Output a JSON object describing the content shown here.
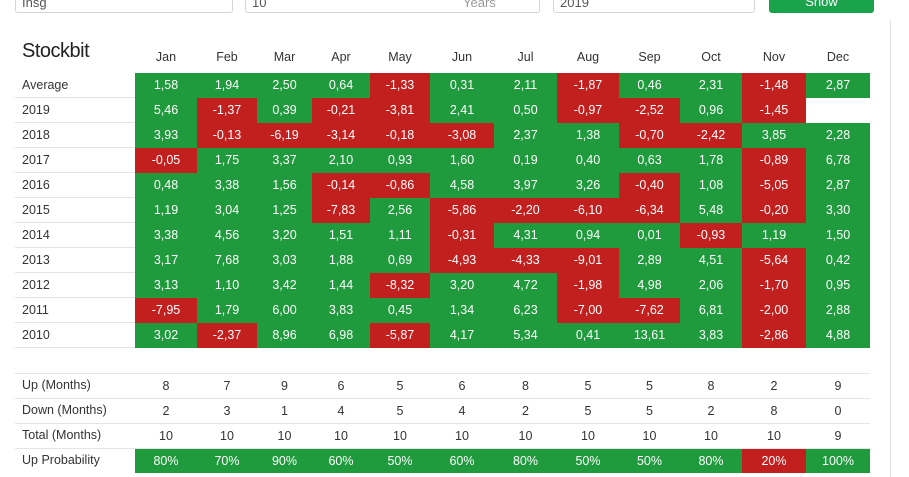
{
  "toolbar": {
    "stock": "Insg",
    "years": "10",
    "years_unit": "Years",
    "year": "2019",
    "button": "Show"
  },
  "logo": "Stockbit",
  "table": {
    "months": [
      "Jan",
      "Feb",
      "Mar",
      "Apr",
      "May",
      "Jun",
      "Jul",
      "Aug",
      "Sep",
      "Oct",
      "Nov",
      "Dec"
    ],
    "positive_color": "#1f9a3c",
    "negative_color": "#c2201e",
    "rows": [
      {
        "label": "Average",
        "cells": [
          "1,58",
          "1,94",
          "2,50",
          "0,64",
          "-1,33",
          "0,31",
          "2,11",
          "-1,87",
          "0,46",
          "2,31",
          "-1,48",
          "2,87"
        ]
      },
      {
        "label": "2019",
        "cells": [
          "5,46",
          "-1,37",
          "0,39",
          "-0,21",
          "-3,81",
          "2,41",
          "0,50",
          "-0,97",
          "-2,52",
          "0,96",
          "-1,45"
        ]
      },
      {
        "label": "2018",
        "cells": [
          "3,93",
          "-0,13",
          "-6,19",
          "-3,14",
          "-0,18",
          "-3,08",
          "2,37",
          "1,38",
          "-0,70",
          "-2,42",
          "3,85",
          "2,28"
        ]
      },
      {
        "label": "2017",
        "cells": [
          "-0,05",
          "1,75",
          "3,37",
          "2,10",
          "0,93",
          "1,60",
          "0,19",
          "0,40",
          "0,63",
          "1,78",
          "-0,89",
          "6,78"
        ]
      },
      {
        "label": "2016",
        "cells": [
          "0,48",
          "3,38",
          "1,56",
          "-0,14",
          "-0,86",
          "4,58",
          "3,97",
          "3,26",
          "-0,40",
          "1,08",
          "-5,05",
          "2,87"
        ]
      },
      {
        "label": "2015",
        "cells": [
          "1,19",
          "3,04",
          "1,25",
          "-7,83",
          "2,56",
          "-5,86",
          "-2,20",
          "-6,10",
          "-6,34",
          "5,48",
          "-0,20",
          "3,30"
        ]
      },
      {
        "label": "2014",
        "cells": [
          "3,38",
          "4,56",
          "3,20",
          "1,51",
          "1,11",
          "-0,31",
          "4,31",
          "0,94",
          "0,01",
          "-0,93",
          "1,19",
          "1,50"
        ]
      },
      {
        "label": "2013",
        "cells": [
          "3,17",
          "7,68",
          "3,03",
          "1,88",
          "0,69",
          "-4,93",
          "-4,33",
          "-9,01",
          "2,89",
          "4,51",
          "-5,64",
          "0,42"
        ]
      },
      {
        "label": "2012",
        "cells": [
          "3,13",
          "1,10",
          "3,42",
          "1,44",
          "-8,32",
          "3,20",
          "4,72",
          "-1,98",
          "4,98",
          "2,06",
          "-1,70",
          "0,95"
        ]
      },
      {
        "label": "2011",
        "cells": [
          "-7,95",
          "1,79",
          "6,00",
          "3,83",
          "0,45",
          "1,34",
          "6,23",
          "-7,00",
          "-7,62",
          "6,81",
          "-2,00",
          "2,88"
        ]
      },
      {
        "label": "2010",
        "cells": [
          "3,02",
          "-2,37",
          "8,96",
          "6,98",
          "-5,87",
          "4,17",
          "5,34",
          "0,41",
          "13,61",
          "3,83",
          "-2,86",
          "4,88"
        ]
      }
    ],
    "summary": [
      {
        "label": "Up (Months)",
        "cells": [
          "8",
          "7",
          "9",
          "6",
          "5",
          "6",
          "8",
          "5",
          "5",
          "8",
          "2",
          "9"
        ]
      },
      {
        "label": "Down (Months)",
        "cells": [
          "2",
          "3",
          "1",
          "4",
          "5",
          "4",
          "2",
          "5",
          "5",
          "2",
          "8",
          "0"
        ]
      },
      {
        "label": "Total (Months)",
        "cells": [
          "10",
          "10",
          "10",
          "10",
          "10",
          "10",
          "10",
          "10",
          "10",
          "10",
          "10",
          "9"
        ]
      },
      {
        "label": "Up Probability",
        "cells": [
          "80%",
          "70%",
          "90%",
          "60%",
          "50%",
          "60%",
          "80%",
          "50%",
          "50%",
          "80%",
          "20%",
          "100%"
        ],
        "colors": [
          "#1f9a3c",
          "#1f9a3c",
          "#1f9a3c",
          "#1f9a3c",
          "#1f9a3c",
          "#1f9a3c",
          "#1f9a3c",
          "#1f9a3c",
          "#1f9a3c",
          "#1f9a3c",
          "#c2201e",
          "#1f9a3c"
        ]
      }
    ]
  }
}
